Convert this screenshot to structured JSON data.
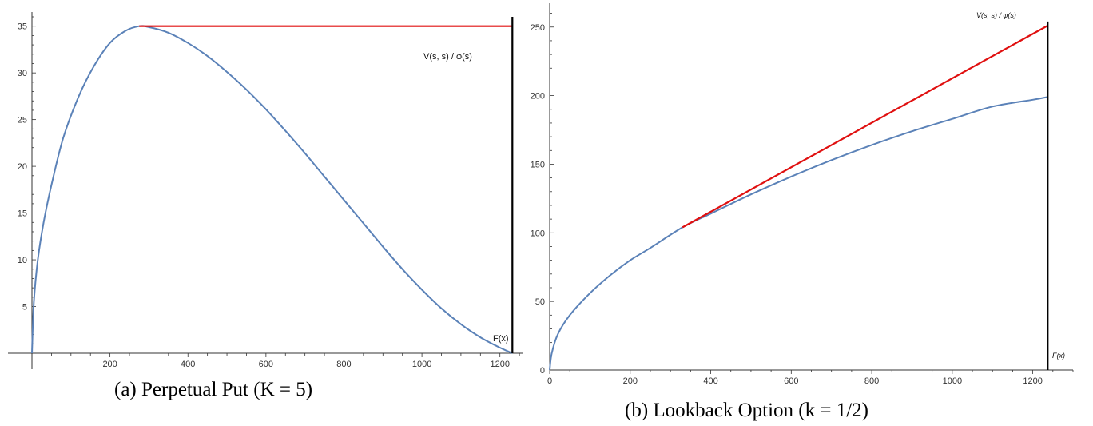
{
  "colors": {
    "curve": "#5b82b8",
    "line": "#e01010",
    "vertical": "#000000",
    "axis": "#333333"
  },
  "captions": {
    "a": "(a) Perpetual Put (K = 5)",
    "b": "(b) Lookback Option (k = 1/2)"
  },
  "chart_data": [
    {
      "type": "line",
      "caption": "(a) Perpetual Put (K = 5)",
      "xlim": [
        0,
        1260
      ],
      "ylim": [
        0,
        36
      ],
      "x_ticks": [
        200,
        400,
        600,
        800,
        1000,
        1200
      ],
      "y_ticks": [
        5,
        10,
        15,
        20,
        25,
        30,
        35
      ],
      "annotations": {
        "line_label": "V(s, s) / φ(s)",
        "vertical_label": "F(x)"
      },
      "series": [
        {
          "role": "curve",
          "x": [
            0,
            5,
            15,
            30,
            50,
            80,
            120,
            160,
            200,
            240,
            275,
            300,
            350,
            400,
            450,
            500,
            550,
            600,
            650,
            700,
            750,
            800,
            850,
            900,
            950,
            1000,
            1050,
            1100,
            1150,
            1200,
            1232
          ],
          "y": [
            0,
            5.5,
            10,
            14,
            18,
            23,
            27.5,
            30.8,
            33.2,
            34.5,
            35,
            34.9,
            34.3,
            33.2,
            31.8,
            30.1,
            28.2,
            26.1,
            23.8,
            21.4,
            18.9,
            16.4,
            13.9,
            11.4,
            9,
            6.8,
            4.8,
            3.1,
            1.7,
            0.6,
            0
          ]
        },
        {
          "role": "horizontal",
          "x": [
            275,
            1232
          ],
          "y": [
            35,
            35
          ]
        },
        {
          "role": "vertical",
          "x": [
            1232,
            1232
          ],
          "y": [
            0,
            36
          ]
        }
      ]
    },
    {
      "type": "line",
      "caption": "(b) Lookback Option (k = 1/2)",
      "xlim": [
        0,
        1300
      ],
      "ylim": [
        0,
        265
      ],
      "x_ticks": [
        0,
        200,
        400,
        600,
        800,
        1000,
        1200
      ],
      "y_ticks": [
        0,
        50,
        100,
        150,
        200,
        250
      ],
      "annotations": {
        "line_label": "V(s, s) / φ(s)",
        "vertical_label": "F(x)"
      },
      "series": [
        {
          "role": "curve",
          "x": [
            0,
            5,
            20,
            50,
            100,
            150,
            200,
            250,
            330,
            400,
            500,
            600,
            700,
            800,
            900,
            1000,
            1100,
            1200,
            1237
          ],
          "y": [
            0,
            12,
            26,
            40,
            56,
            69,
            80,
            89,
            104,
            114,
            128,
            141,
            153,
            164,
            174,
            183,
            192,
            197,
            199
          ]
        },
        {
          "role": "tangent",
          "x": [
            330,
            1237
          ],
          "y": [
            104,
            251
          ]
        },
        {
          "role": "vertical",
          "x": [
            1237,
            1237
          ],
          "y": [
            0,
            254
          ]
        }
      ]
    }
  ]
}
